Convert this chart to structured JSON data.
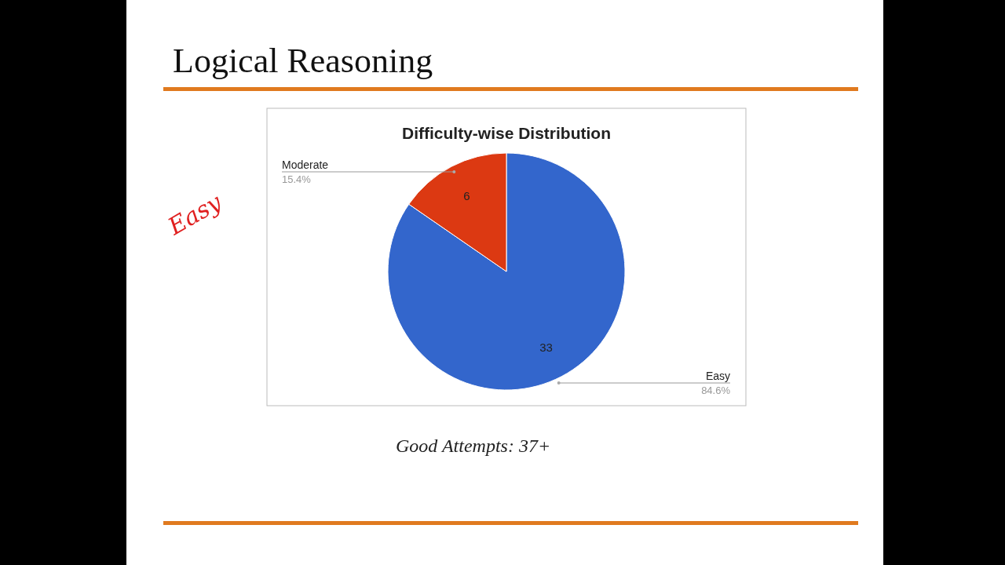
{
  "chart_data": {
    "type": "pie",
    "title": "Logical Reasoning",
    "subtitle": "Difficulty-wise Distribution",
    "categories": [
      "Easy",
      "Moderate"
    ],
    "values": [
      33,
      6
    ],
    "colors": [
      "#3366cc",
      "#dc3912"
    ],
    "data_labels": true,
    "annotations": [
      "84.6%",
      "15.4%",
      "Easy",
      "Good Attempts: 37+"
    ]
  }
}
